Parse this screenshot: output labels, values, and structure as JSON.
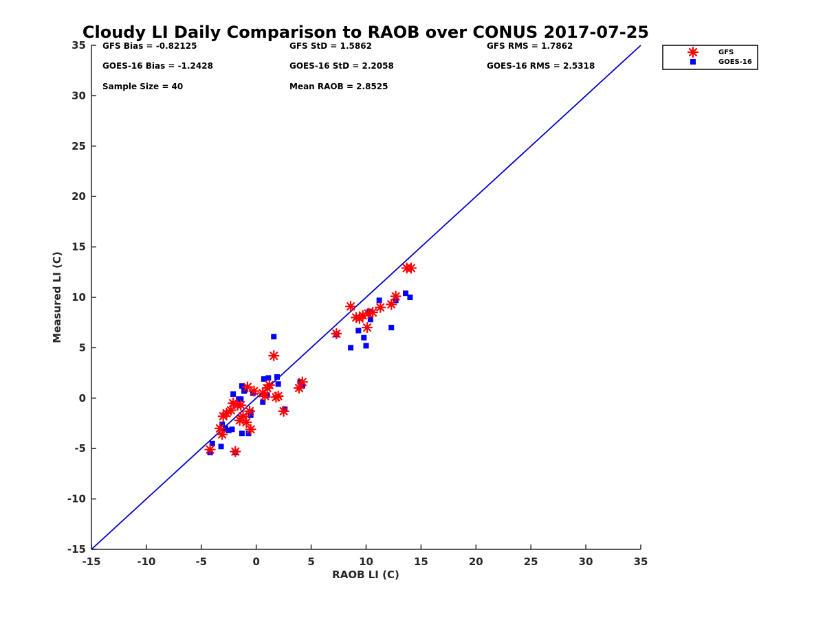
{
  "chart_data": {
    "type": "scatter",
    "title": "Cloudy LI Daily Comparison to RAOB over CONUS 2017-07-25",
    "xlabel": "RAOB LI (C)",
    "ylabel": "Measured LI (C)",
    "xlim": [
      -15,
      35
    ],
    "ylim": [
      -15,
      35
    ],
    "xticks": [
      -15,
      -10,
      -5,
      0,
      5,
      10,
      15,
      20,
      25,
      30,
      35
    ],
    "yticks": [
      -15,
      -10,
      -5,
      0,
      5,
      10,
      15,
      20,
      25,
      30,
      35
    ],
    "grid": false,
    "legend_position": "outside-top-right",
    "reference_line": {
      "from": [
        -15,
        -15
      ],
      "to": [
        35,
        35
      ],
      "color": "#0000cc"
    },
    "stats": [
      {
        "text": "GFS Bias = -0.82125"
      },
      {
        "text": "GFS StD = 1.5862"
      },
      {
        "text": "GFS RMS = 1.7862"
      },
      {
        "text": "GOES-16 Bias = -1.2428"
      },
      {
        "text": "GOES-16 StD = 2.2058"
      },
      {
        "text": "GOES-16 RMS = 2.5318"
      },
      {
        "text": "Sample Size = 40"
      },
      {
        "text": "Mean RAOB = 2.8525"
      }
    ],
    "series": [
      {
        "name": "GFS",
        "marker": "asterisk",
        "color": "#ff0000",
        "points": [
          [
            -4.2,
            -5.1
          ],
          [
            -1.9,
            -5.3
          ],
          [
            -3.3,
            -3.0
          ],
          [
            -3.1,
            -3.6
          ],
          [
            -3.0,
            -1.8
          ],
          [
            -2.7,
            -1.5
          ],
          [
            -2.3,
            -1.2
          ],
          [
            -2.1,
            -0.5
          ],
          [
            -1.7,
            -0.7
          ],
          [
            -1.4,
            -0.7
          ],
          [
            -1.2,
            -1.8
          ],
          [
            -1.5,
            -2.2
          ],
          [
            -0.9,
            -2.4
          ],
          [
            -0.8,
            1.1
          ],
          [
            -0.6,
            -1.3
          ],
          [
            -0.5,
            -3.1
          ],
          [
            -0.2,
            0.7
          ],
          [
            0.6,
            0.5
          ],
          [
            0.8,
            0.2
          ],
          [
            1.0,
            1.0
          ],
          [
            1.2,
            1.3
          ],
          [
            1.6,
            4.2
          ],
          [
            1.8,
            0.1
          ],
          [
            2.0,
            0.2
          ],
          [
            2.5,
            -1.3
          ],
          [
            3.9,
            1.0
          ],
          [
            4.2,
            1.6
          ],
          [
            7.3,
            6.4
          ],
          [
            8.6,
            9.1
          ],
          [
            9.1,
            8.0
          ],
          [
            9.4,
            7.9
          ],
          [
            9.7,
            8.2
          ],
          [
            10.1,
            7.0
          ],
          [
            10.2,
            8.4
          ],
          [
            10.6,
            8.5
          ],
          [
            11.3,
            9.0
          ],
          [
            12.3,
            9.3
          ],
          [
            12.7,
            10.1
          ],
          [
            13.7,
            12.9
          ],
          [
            14.1,
            12.9
          ]
        ]
      },
      {
        "name": "GOES-16",
        "marker": "square",
        "color": "#0000ff",
        "points": [
          [
            -4.2,
            -5.4
          ],
          [
            -4.0,
            -4.5
          ],
          [
            -3.2,
            -4.8
          ],
          [
            -3.1,
            -2.6
          ],
          [
            -2.8,
            -3.0
          ],
          [
            -2.5,
            -3.2
          ],
          [
            -2.2,
            -3.1
          ],
          [
            -2.1,
            0.4
          ],
          [
            -1.9,
            -5.4
          ],
          [
            -1.6,
            -0.1
          ],
          [
            -1.4,
            -0.1
          ],
          [
            -1.3,
            1.2
          ],
          [
            -1.3,
            -3.5
          ],
          [
            -1.1,
            0.7
          ],
          [
            -0.7,
            -3.5
          ],
          [
            -0.5,
            -1.7
          ],
          [
            -0.5,
            -1.4
          ],
          [
            -0.3,
            0.5
          ],
          [
            0.6,
            -0.4
          ],
          [
            0.7,
            1.9
          ],
          [
            1.0,
            0.3
          ],
          [
            1.1,
            2.0
          ],
          [
            1.6,
            6.1
          ],
          [
            1.9,
            2.1
          ],
          [
            2.0,
            1.4
          ],
          [
            2.6,
            -1.1
          ],
          [
            4.0,
            1.6
          ],
          [
            4.2,
            1.2
          ],
          [
            7.3,
            6.3
          ],
          [
            8.6,
            5.0
          ],
          [
            9.3,
            6.7
          ],
          [
            9.8,
            6.0
          ],
          [
            10.0,
            5.2
          ],
          [
            10.4,
            7.8
          ],
          [
            11.2,
            9.7
          ],
          [
            12.3,
            7.0
          ],
          [
            12.7,
            9.7
          ],
          [
            13.6,
            10.4
          ],
          [
            14.0,
            10.0
          ],
          [
            10.3,
            8.6
          ]
        ]
      }
    ]
  }
}
